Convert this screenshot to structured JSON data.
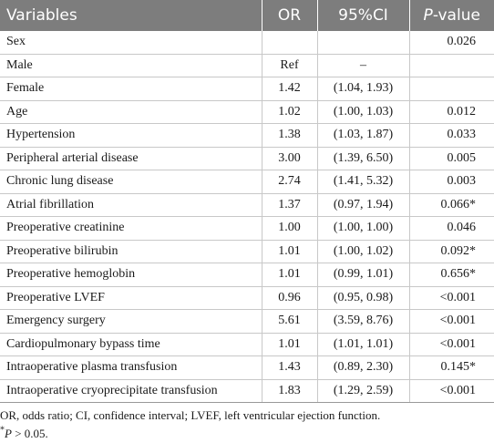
{
  "table": {
    "headers": {
      "variables": "Variables",
      "or": "OR",
      "ci": "95%CI",
      "p_prefix": "P",
      "p_suffix": "-value"
    },
    "rows": [
      {
        "variable": "Sex",
        "or": "",
        "ci": "",
        "p": "0.026"
      },
      {
        "variable": "Male",
        "or": "Ref",
        "ci": "–",
        "p": ""
      },
      {
        "variable": "Female",
        "or": "1.42",
        "ci": "(1.04, 1.93)",
        "p": ""
      },
      {
        "variable": "Age",
        "or": "1.02",
        "ci": "(1.00, 1.03)",
        "p": "0.012"
      },
      {
        "variable": "Hypertension",
        "or": "1.38",
        "ci": "(1.03, 1.87)",
        "p": "0.033"
      },
      {
        "variable": "Peripheral arterial disease",
        "or": "3.00",
        "ci": "(1.39, 6.50)",
        "p": "0.005"
      },
      {
        "variable": "Chronic lung disease",
        "or": "2.74",
        "ci": "(1.41, 5.32)",
        "p": "0.003"
      },
      {
        "variable": "Atrial fibrillation",
        "or": "1.37",
        "ci": "(0.97, 1.94)",
        "p": "0.066*"
      },
      {
        "variable": "Preoperative creatinine",
        "or": "1.00",
        "ci": "(1.00, 1.00)",
        "p": "0.046"
      },
      {
        "variable": "Preoperative bilirubin",
        "or": "1.01",
        "ci": "(1.00, 1.02)",
        "p": "0.092*"
      },
      {
        "variable": "Preoperative hemoglobin",
        "or": "1.01",
        "ci": "(0.99, 1.01)",
        "p": "0.656*"
      },
      {
        "variable": "Preoperative LVEF",
        "or": "0.96",
        "ci": "(0.95, 0.98)",
        "p": "<0.001"
      },
      {
        "variable": "Emergency surgery",
        "or": "5.61",
        "ci": "(3.59, 8.76)",
        "p": "<0.001"
      },
      {
        "variable": "Cardiopulmonary bypass time",
        "or": "1.01",
        "ci": "(1.01, 1.01)",
        "p": "<0.001"
      },
      {
        "variable": "Intraoperative plasma transfusion",
        "or": "1.43",
        "ci": "(0.89, 2.30)",
        "p": "0.145*"
      },
      {
        "variable": "Intraoperative cryoprecipitate transfusion",
        "or": "1.83",
        "ci": "(1.29, 2.59)",
        "p": "<0.001"
      }
    ]
  },
  "footnotes": {
    "abbreviations": "OR, odds ratio; CI, confidence interval; LVEF, left ventricular ejection function.",
    "mark": "*",
    "p_italic": "P",
    "p_rest": " > 0.05."
  },
  "colors": {
    "header_bg": "#7d7d7d",
    "header_text": "#ffffff",
    "grid": "#c8c8c8"
  }
}
